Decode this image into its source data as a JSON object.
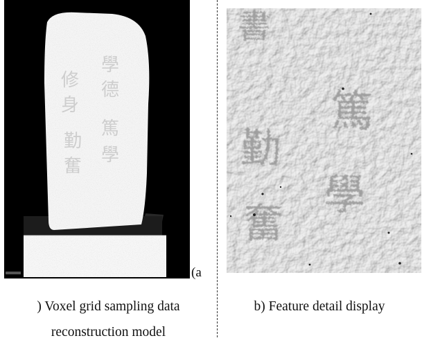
{
  "figure": {
    "panel_a": {
      "label_suffix": "(a",
      "caption_lines": [
        ") Voxel grid sampling data",
        "reconstruction model"
      ],
      "inscription_glyphs": [
        "學",
        "德",
        "篤",
        "學",
        "修",
        "身",
        "勤",
        "奮"
      ],
      "background_color": "#000000",
      "model_color": "#f4f4f4"
    },
    "panel_b": {
      "caption": "b) Feature detail display",
      "glyphs": [
        "書",
        "篤",
        "勤",
        "學",
        "奮"
      ],
      "surface_color": "#e9e9e9"
    }
  }
}
